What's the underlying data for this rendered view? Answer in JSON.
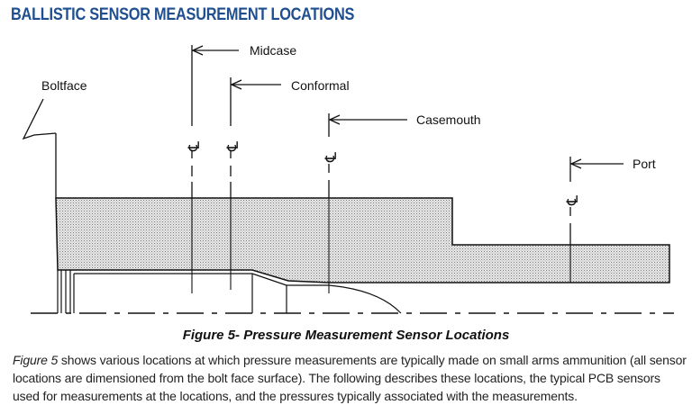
{
  "heading": "BALLISTIC SENSOR MEASUREMENT LOCATIONS",
  "diagram": {
    "labels": {
      "boltface": "Boltface",
      "midcase": "Midcase",
      "conformal": "Conformal",
      "casemouth": "Casemouth",
      "port": "Port"
    },
    "centerline_symbol": "℄"
  },
  "caption": "Figure 5- Pressure Measurement Sensor Locations",
  "body": {
    "figure_ref": "Figure 5",
    "text": " shows various locations at which pressure measurements are typically made on small arms ammunition (all sensor locations are dimensioned from the bolt face surface).  The following describes these locations, the typical PCB sensors used for measurements at the locations, and the pressures typically associated with the measurements."
  },
  "colors": {
    "heading": "#1f4f8f",
    "ink": "#111111"
  }
}
